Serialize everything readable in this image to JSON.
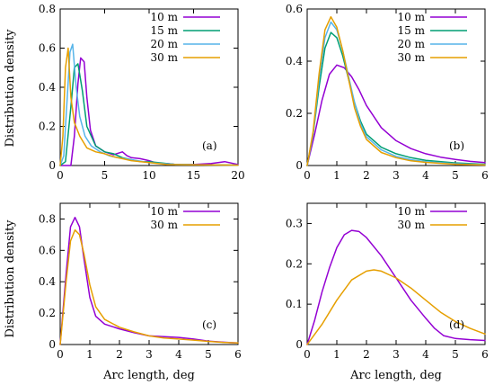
{
  "figure": {
    "ylabel": "Distribution density",
    "xlabel": "Arc length, deg"
  },
  "colors": {
    "10 m": "#9400d3",
    "15 m": "#009e73",
    "20 m": "#56b4e9",
    "30 m": "#e69f00"
  },
  "chart_data": [
    {
      "type": "line",
      "panel_label": "(a)",
      "xlim": [
        0,
        20
      ],
      "ylim": [
        0,
        0.8
      ],
      "xticks": [
        0,
        5,
        10,
        15,
        20
      ],
      "yticks": [
        0,
        0.2,
        0.4,
        0.6,
        0.8
      ],
      "ytick_labels": [
        "0",
        "0.2",
        "0.4",
        "0.6",
        "0.8"
      ],
      "legend_position": "top-right",
      "series": [
        {
          "name": "10 m",
          "x": [
            0,
            1.2,
            1.6,
            2.0,
            2.3,
            2.7,
            3.0,
            3.4,
            4.0,
            5.0,
            6.0,
            7.0,
            7.5,
            8.0,
            9.0,
            10.0,
            11.0,
            12.0,
            13.0,
            15.0,
            17.0,
            18.5,
            19.5,
            20.0
          ],
          "y": [
            0,
            0,
            0.15,
            0.42,
            0.55,
            0.53,
            0.35,
            0.18,
            0.1,
            0.07,
            0.055,
            0.07,
            0.05,
            0.04,
            0.035,
            0.025,
            0.01,
            0.01,
            0.005,
            0.005,
            0.01,
            0.02,
            0.01,
            0.005
          ]
        },
        {
          "name": "15 m",
          "x": [
            0,
            0.6,
            1.2,
            1.6,
            2.0,
            2.5,
            3.0,
            4.0,
            5.0,
            6.0,
            7.0,
            8.0,
            9.0,
            10.0,
            11.0,
            13.0,
            16.0,
            20.0
          ],
          "y": [
            0,
            0.02,
            0.3,
            0.5,
            0.52,
            0.38,
            0.2,
            0.1,
            0.07,
            0.06,
            0.04,
            0.03,
            0.02,
            0.02,
            0.015,
            0.005,
            0.003,
            0.002
          ]
        },
        {
          "name": "20 m",
          "x": [
            0,
            0.4,
            0.8,
            1.1,
            1.4,
            1.8,
            2.2,
            2.8,
            3.5,
            4.5,
            5.5,
            6.5,
            8.0,
            10.0,
            13.0,
            16.0,
            20.0
          ],
          "y": [
            0,
            0.05,
            0.35,
            0.58,
            0.62,
            0.4,
            0.25,
            0.15,
            0.1,
            0.07,
            0.05,
            0.04,
            0.03,
            0.015,
            0.005,
            0.003,
            0.002
          ]
        },
        {
          "name": "30 m",
          "x": [
            0,
            0.3,
            0.6,
            0.9,
            1.2,
            1.6,
            2.2,
            3.0,
            4.0,
            5.0,
            6.0,
            7.0,
            8.0,
            10.0,
            12.0,
            15.0,
            20.0
          ],
          "y": [
            0,
            0.15,
            0.5,
            0.6,
            0.35,
            0.22,
            0.15,
            0.09,
            0.07,
            0.06,
            0.045,
            0.035,
            0.025,
            0.015,
            0.005,
            0.003,
            0.002
          ]
        }
      ]
    },
    {
      "type": "line",
      "panel_label": "(b)",
      "xlim": [
        0,
        6
      ],
      "ylim": [
        0,
        0.6
      ],
      "xticks": [
        0,
        1,
        2,
        3,
        4,
        5,
        6
      ],
      "yticks": [
        0,
        0.2,
        0.4,
        0.6
      ],
      "ytick_labels": [
        "0",
        "0.2",
        "0.4",
        "0.6"
      ],
      "legend_position": "top-right",
      "series": [
        {
          "name": "10 m",
          "x": [
            0,
            0.25,
            0.5,
            0.75,
            1.0,
            1.25,
            1.5,
            1.75,
            2.0,
            2.5,
            3.0,
            3.5,
            4.0,
            4.5,
            5.0,
            5.5,
            6.0
          ],
          "y": [
            0,
            0.12,
            0.25,
            0.35,
            0.385,
            0.375,
            0.34,
            0.29,
            0.23,
            0.145,
            0.095,
            0.065,
            0.045,
            0.032,
            0.023,
            0.016,
            0.011
          ]
        },
        {
          "name": "15 m",
          "x": [
            0,
            0.2,
            0.4,
            0.6,
            0.8,
            1.0,
            1.2,
            1.4,
            1.6,
            1.8,
            2.0,
            2.5,
            3.0,
            3.5,
            4.0,
            5.0,
            6.0
          ],
          "y": [
            0,
            0.12,
            0.3,
            0.45,
            0.51,
            0.49,
            0.42,
            0.33,
            0.24,
            0.17,
            0.12,
            0.07,
            0.045,
            0.03,
            0.02,
            0.01,
            0.005
          ]
        },
        {
          "name": "20 m",
          "x": [
            0,
            0.2,
            0.4,
            0.6,
            0.8,
            1.0,
            1.2,
            1.4,
            1.6,
            1.8,
            2.0,
            2.5,
            3.0,
            3.5,
            4.0,
            5.0,
            6.0
          ],
          "y": [
            0,
            0.12,
            0.33,
            0.49,
            0.55,
            0.52,
            0.44,
            0.34,
            0.24,
            0.16,
            0.11,
            0.06,
            0.035,
            0.022,
            0.015,
            0.007,
            0.003
          ]
        },
        {
          "name": "30 m",
          "x": [
            0,
            0.2,
            0.4,
            0.6,
            0.8,
            1.0,
            1.2,
            1.4,
            1.6,
            1.8,
            2.0,
            2.5,
            3.0,
            3.5,
            4.0,
            5.0,
            6.0
          ],
          "y": [
            0,
            0.13,
            0.35,
            0.52,
            0.57,
            0.53,
            0.44,
            0.33,
            0.22,
            0.15,
            0.1,
            0.05,
            0.03,
            0.018,
            0.012,
            0.005,
            0.002
          ]
        }
      ]
    },
    {
      "type": "line",
      "panel_label": "(c)",
      "xlim": [
        0,
        6
      ],
      "ylim": [
        0,
        0.9
      ],
      "xticks": [
        0,
        1,
        2,
        3,
        4,
        5,
        6
      ],
      "yticks": [
        0,
        0.2,
        0.4,
        0.6,
        0.8
      ],
      "ytick_labels": [
        "0",
        "0.2",
        "0.4",
        "0.6",
        "0.8"
      ],
      "legend_position": "top-right",
      "series": [
        {
          "name": "10 m",
          "x": [
            0,
            0.2,
            0.35,
            0.5,
            0.65,
            0.8,
            1.0,
            1.2,
            1.5,
            2.0,
            2.5,
            3.0,
            3.5,
            4.0,
            4.5,
            5.0,
            5.5,
            6.0
          ],
          "y": [
            0,
            0.45,
            0.75,
            0.81,
            0.75,
            0.55,
            0.3,
            0.18,
            0.13,
            0.1,
            0.075,
            0.055,
            0.05,
            0.045,
            0.035,
            0.022,
            0.015,
            0.01
          ]
        },
        {
          "name": "30 m",
          "x": [
            0,
            0.2,
            0.35,
            0.5,
            0.65,
            0.8,
            1.0,
            1.2,
            1.5,
            2.0,
            2.5,
            3.0,
            3.5,
            4.0,
            4.5,
            5.0,
            5.5,
            6.0
          ],
          "y": [
            0,
            0.4,
            0.66,
            0.73,
            0.7,
            0.58,
            0.38,
            0.24,
            0.16,
            0.11,
            0.08,
            0.055,
            0.042,
            0.035,
            0.028,
            0.02,
            0.014,
            0.01
          ]
        }
      ]
    },
    {
      "type": "line",
      "panel_label": "(d)",
      "xlim": [
        0,
        6
      ],
      "ylim": [
        0,
        0.35
      ],
      "xticks": [
        0,
        1,
        2,
        3,
        4,
        5,
        6
      ],
      "yticks": [
        0,
        0.1,
        0.2,
        0.3
      ],
      "ytick_labels": [
        "0",
        "0.1",
        "0.2",
        "0.3"
      ],
      "legend_position": "top-right",
      "series": [
        {
          "name": "10 m",
          "x": [
            0,
            0.25,
            0.5,
            0.75,
            1.0,
            1.25,
            1.5,
            1.75,
            2.0,
            2.5,
            3.0,
            3.5,
            4.0,
            4.3,
            4.6,
            5.0,
            5.5,
            6.0
          ],
          "y": [
            0,
            0.06,
            0.13,
            0.19,
            0.24,
            0.272,
            0.283,
            0.28,
            0.265,
            0.22,
            0.165,
            0.11,
            0.065,
            0.04,
            0.022,
            0.015,
            0.012,
            0.01
          ]
        },
        {
          "name": "30 m",
          "x": [
            0,
            0.5,
            1.0,
            1.5,
            2.0,
            2.25,
            2.5,
            3.0,
            3.5,
            4.0,
            4.5,
            5.0,
            5.5,
            6.0
          ],
          "y": [
            0,
            0.05,
            0.11,
            0.16,
            0.182,
            0.185,
            0.182,
            0.165,
            0.14,
            0.11,
            0.08,
            0.057,
            0.04,
            0.026
          ]
        }
      ]
    }
  ]
}
